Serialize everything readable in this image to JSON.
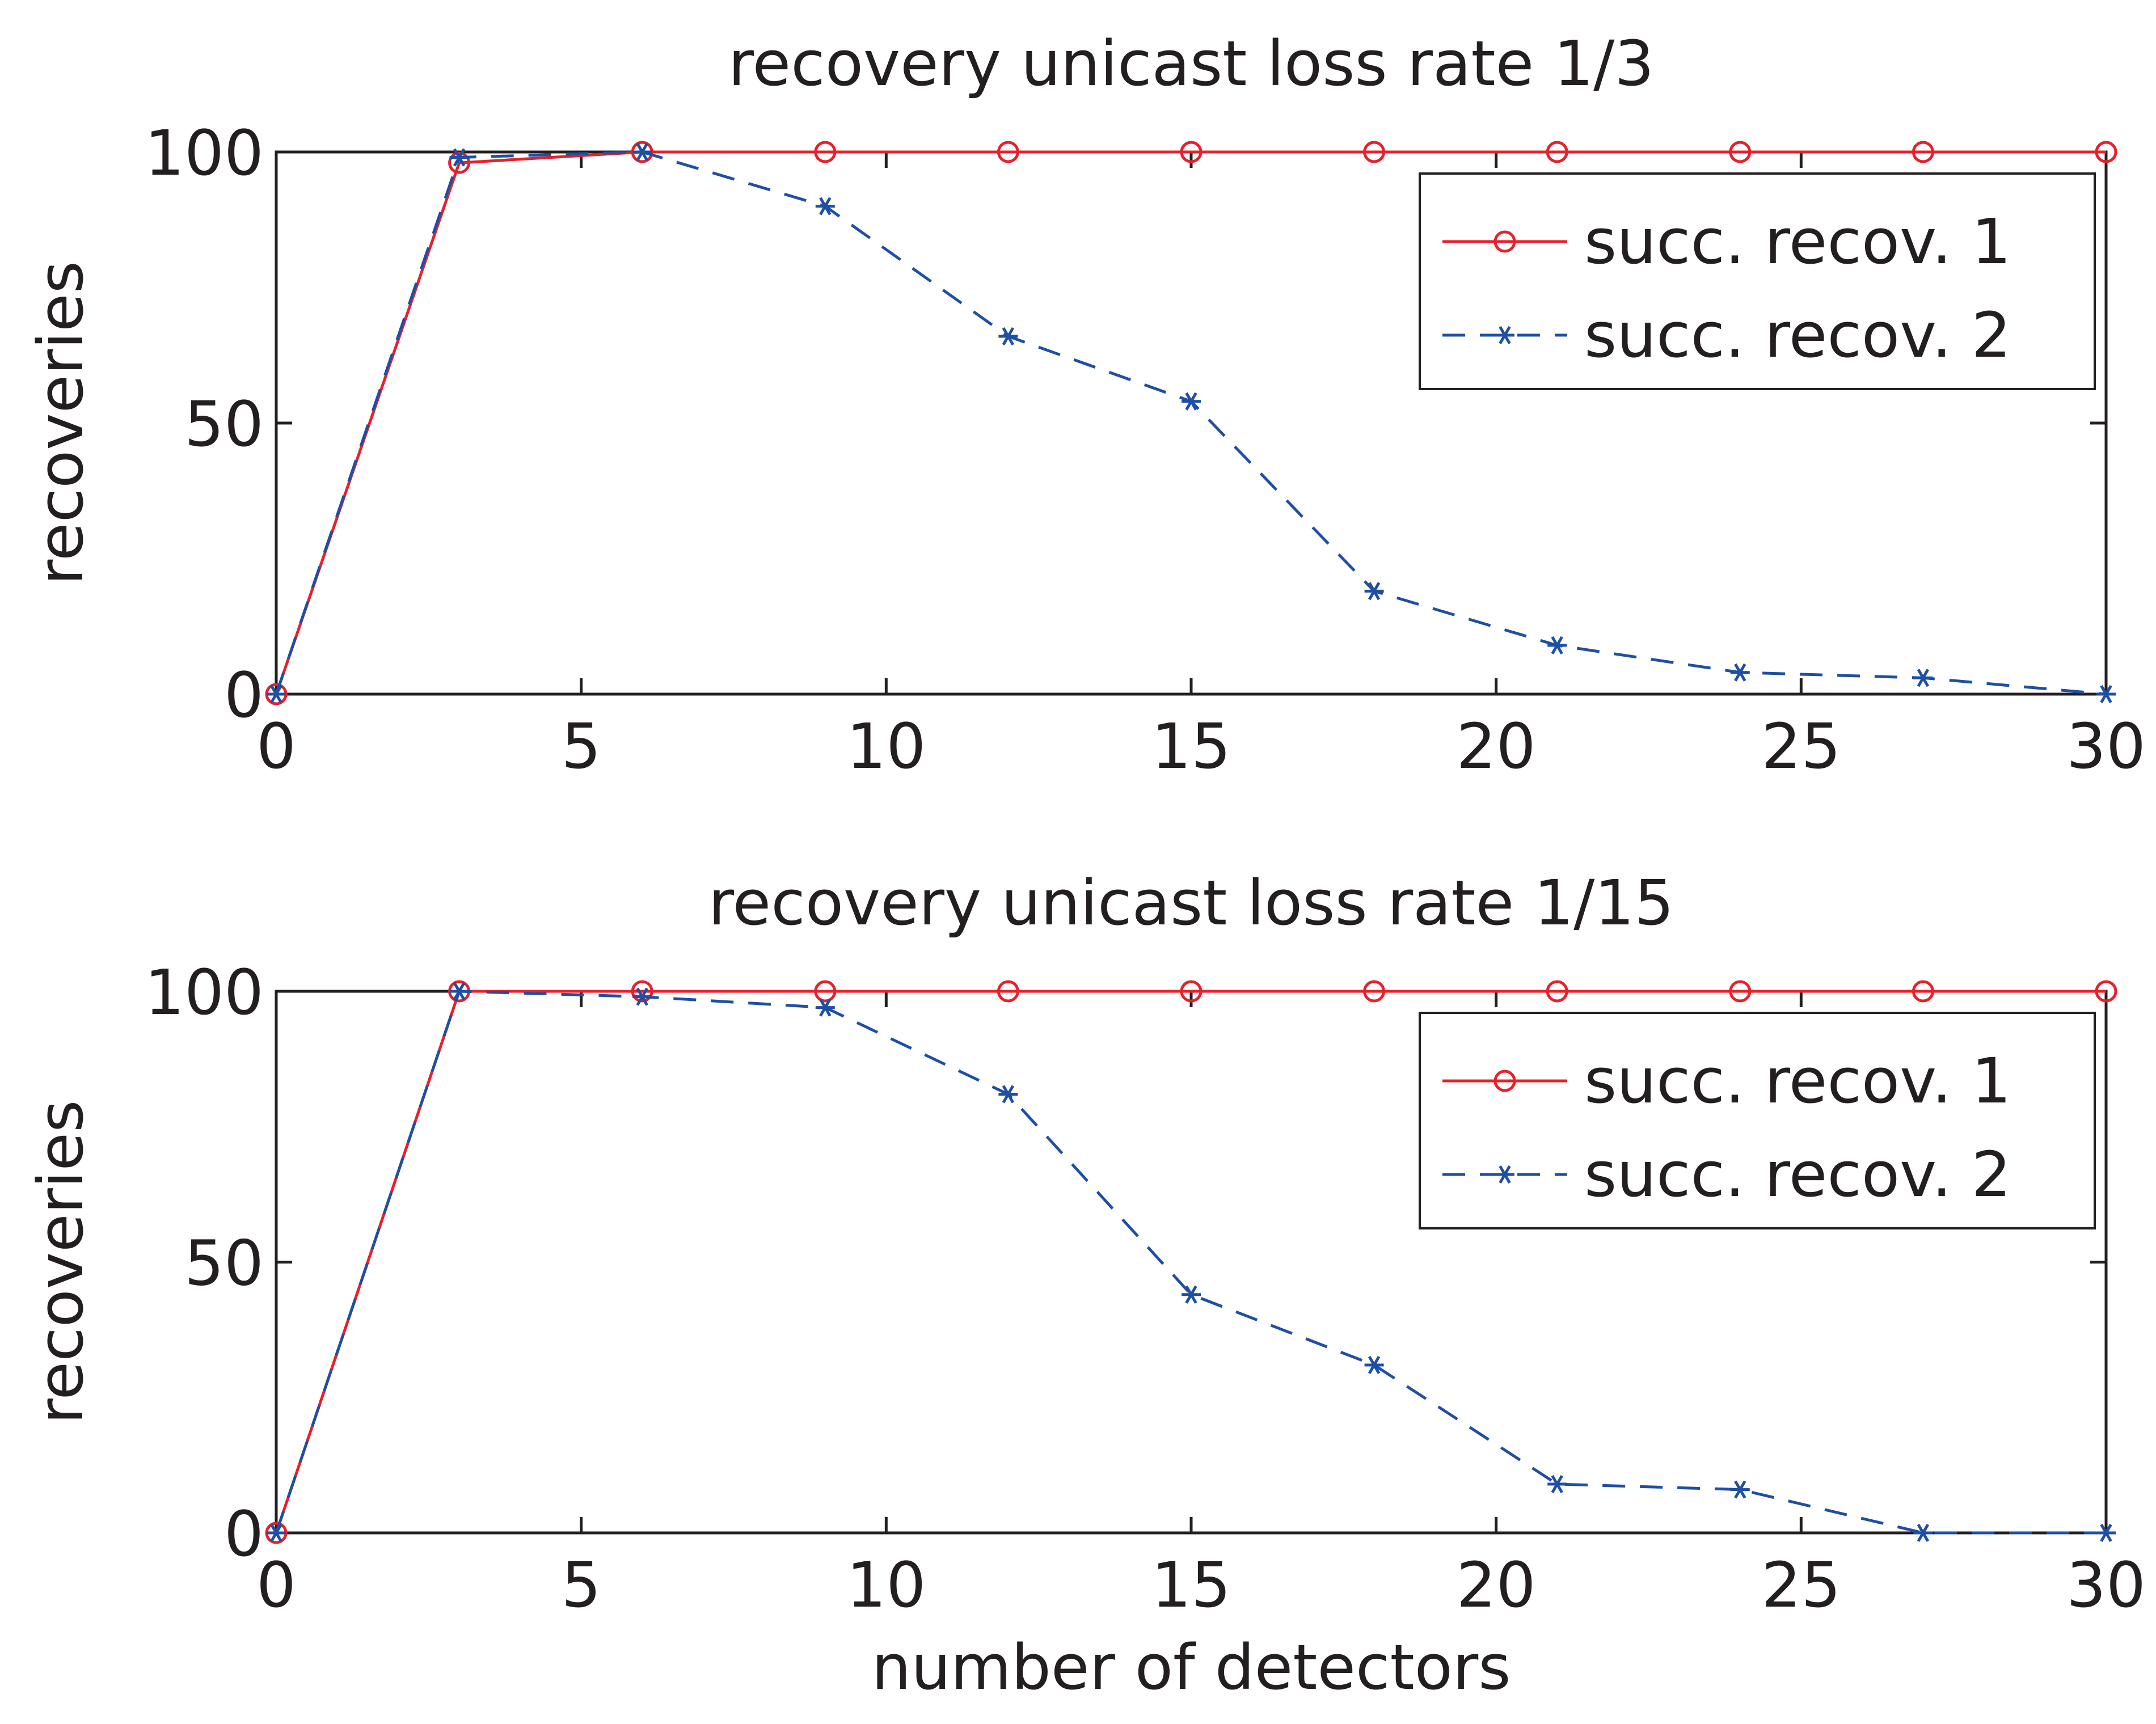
{
  "chart_data": [
    {
      "type": "line",
      "title": "recovery unicast loss rate 1/3",
      "xlabel": "",
      "ylabel": "recoveries",
      "xlim": [
        0,
        30
      ],
      "ylim": [
        0,
        100
      ],
      "xticks": [
        0,
        5,
        10,
        15,
        20,
        25,
        30
      ],
      "yticks": [
        0,
        50,
        100
      ],
      "grid": false,
      "legend_position": "top-right",
      "x": [
        0,
        3,
        6,
        9,
        12,
        15,
        18,
        21,
        24,
        27,
        30
      ],
      "series": [
        {
          "name": "succ. recov. 1",
          "color": "#e8202a",
          "line": "solid",
          "marker": "circle",
          "values": [
            0,
            98,
            100,
            100,
            100,
            100,
            100,
            100,
            100,
            100,
            100
          ]
        },
        {
          "name": "succ. recov. 2",
          "color": "#1f4fa3",
          "line": "dashed",
          "marker": "asterisk",
          "values": [
            0,
            99,
            100,
            90,
            66,
            54,
            19,
            9,
            4,
            3,
            0
          ]
        }
      ]
    },
    {
      "type": "line",
      "title": "recovery unicast loss rate 1/15",
      "xlabel": "number of detectors",
      "ylabel": "recoveries",
      "xlim": [
        0,
        30
      ],
      "ylim": [
        0,
        100
      ],
      "xticks": [
        0,
        5,
        10,
        15,
        20,
        25,
        30
      ],
      "yticks": [
        0,
        50,
        100
      ],
      "grid": false,
      "legend_position": "top-right",
      "x": [
        0,
        3,
        6,
        9,
        12,
        15,
        18,
        21,
        24,
        27,
        30
      ],
      "series": [
        {
          "name": "succ. recov. 1",
          "color": "#e8202a",
          "line": "solid",
          "marker": "circle",
          "values": [
            0,
            100,
            100,
            100,
            100,
            100,
            100,
            100,
            100,
            100,
            100
          ]
        },
        {
          "name": "succ. recov. 2",
          "color": "#1f4fa3",
          "line": "dashed",
          "marker": "asterisk",
          "values": [
            0,
            100,
            99,
            97,
            81,
            44,
            31,
            9,
            8,
            0,
            0
          ]
        }
      ]
    }
  ]
}
